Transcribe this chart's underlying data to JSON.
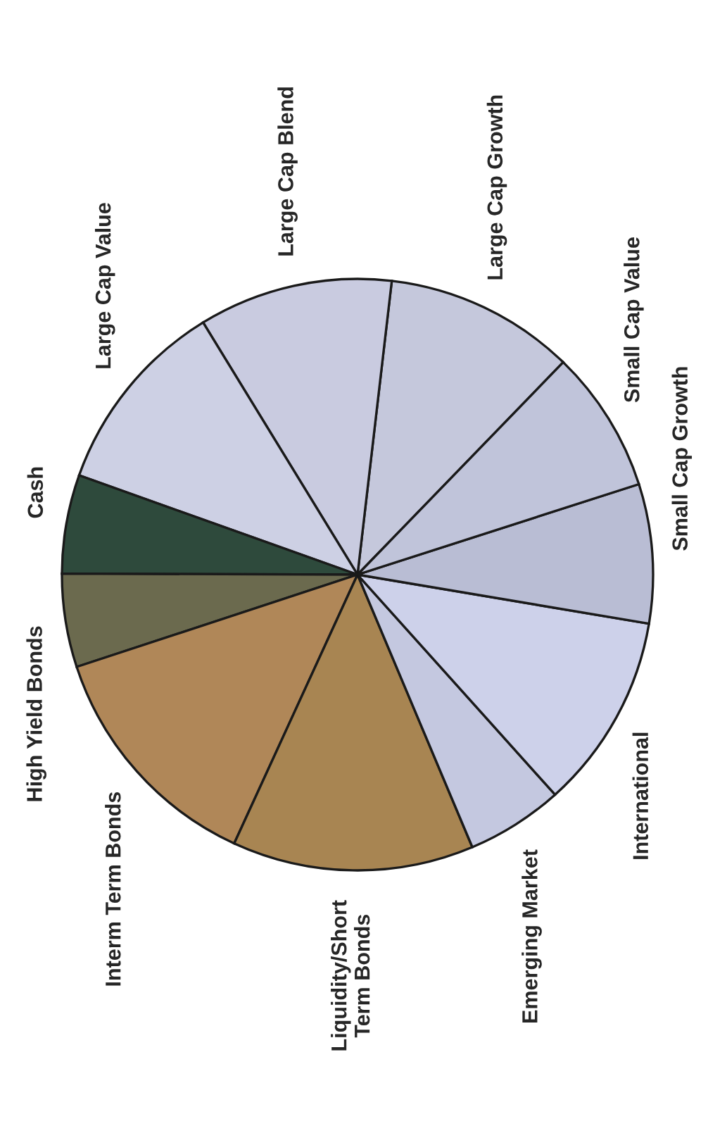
{
  "chart_data": {
    "type": "pie",
    "categories": [
      "Large Cap Growth",
      "Large Cap Blend",
      "Large Cap Value",
      "Cash",
      "High Yield Bonds",
      "Interm Term Bonds",
      "Liquidity/Short\nTerm Bonds",
      "Emerging Market",
      "International",
      "Small Cap Growth",
      "Small Cap Value"
    ],
    "values": [
      10.4,
      10.6,
      10.8,
      5.4,
      5.1,
      13.1,
      13.2,
      5.3,
      10.7,
      7.6,
      7.8
    ],
    "colors": [
      "#c5c8dc",
      "#c9cbe0",
      "#cdd0e4",
      "#2e4a3c",
      "#6b6a4e",
      "#b08758",
      "#a88552",
      "#c4c8e0",
      "#cdd1ea",
      "#b9bdd4",
      "#c0c4da"
    ]
  }
}
